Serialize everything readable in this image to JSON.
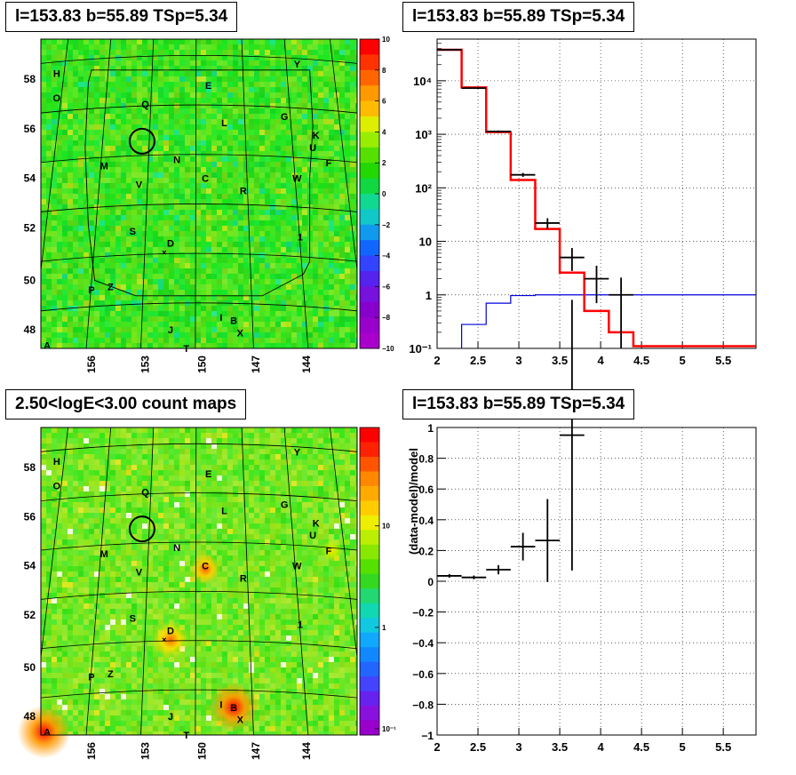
{
  "titles": {
    "top_left": "l=153.83 b=55.89 TSp=5.34",
    "top_right": "l=153.83 b=55.89 TSp=5.34",
    "bottom_left": "2.50<logE<3.00 count maps",
    "bottom_right": "l=153.83 b=55.89 TSp=5.34"
  },
  "chart_data": [
    {
      "type": "heatmap",
      "name_hint": "TS map",
      "xticks": [
        "156",
        "153",
        "150",
        "147",
        "144"
      ],
      "yticks": [
        "58",
        "56",
        "54",
        "52",
        "50",
        "48"
      ],
      "colorbar": {
        "min": -10,
        "max": 10,
        "ticks": [
          "10",
          "8",
          "6",
          "4",
          "2",
          "0",
          "−2",
          "−4",
          "−6",
          "−8",
          "−10"
        ]
      },
      "colors": {
        "background": "#33e033",
        "high": "#ff0000",
        "low": "#7700cc"
      },
      "grid": true
    },
    {
      "type": "line",
      "name_hint": "spectrum",
      "log_y": true,
      "xlim": [
        2,
        5.9
      ],
      "ylim": [
        0.1,
        60000
      ],
      "xticks": [
        "2",
        "2.5",
        "3",
        "3.5",
        "4",
        "4.5",
        "5",
        "5.5"
      ],
      "yticks": [
        "10⁻¹",
        "1",
        "10",
        "10²",
        "10³",
        "10⁴"
      ],
      "grid": true,
      "model_steps": {
        "edges": [
          2.0,
          2.3,
          2.6,
          2.9,
          3.2,
          3.5,
          3.8,
          4.1,
          4.4,
          5.9
        ],
        "values": [
          38000,
          7500,
          1100,
          140,
          17,
          2.6,
          0.5,
          0.2,
          0.11
        ]
      },
      "source_steps": {
        "edges": [
          2.3,
          2.6,
          2.9,
          3.2,
          5.9
        ],
        "values": [
          0.28,
          0.7,
          0.97,
          1.0
        ]
      },
      "data_points": [
        {
          "x": 2.15,
          "xerr": 0.15,
          "y": 38000,
          "ylo": 37500,
          "yhi": 38500
        },
        {
          "x": 2.45,
          "xerr": 0.15,
          "y": 7300,
          "ylo": 7150,
          "yhi": 7450
        },
        {
          "x": 2.75,
          "xerr": 0.15,
          "y": 1130,
          "ylo": 1080,
          "yhi": 1180
        },
        {
          "x": 3.05,
          "xerr": 0.15,
          "y": 175,
          "ylo": 160,
          "yhi": 190
        },
        {
          "x": 3.35,
          "xerr": 0.15,
          "y": 22,
          "ylo": 17,
          "yhi": 27
        },
        {
          "x": 3.65,
          "xerr": 0.15,
          "y": 5,
          "ylo": 2.8,
          "yhi": 7.5
        },
        {
          "x": 3.95,
          "xerr": 0.15,
          "y": 2,
          "ylo": 0.7,
          "yhi": 3.5
        },
        {
          "x": 4.25,
          "xerr": 0.15,
          "y": 1,
          "ylo": 0.1,
          "yhi": 2.1
        }
      ],
      "colors": {
        "model": "#ff0000",
        "source": "#0000dd",
        "data": "#000000"
      }
    },
    {
      "type": "heatmap",
      "name_hint": "count map",
      "xticks": [
        "156",
        "153",
        "150",
        "147",
        "144"
      ],
      "yticks": [
        "58",
        "56",
        "54",
        "52",
        "50",
        "48"
      ],
      "colorbar": {
        "ticks": [
          "10",
          "1",
          "10⁻¹"
        ]
      },
      "colors": {
        "background": "#5fe83a",
        "high": "#ff0000",
        "low": "#7700cc"
      },
      "grid": true
    },
    {
      "type": "scatter",
      "name_hint": "residuals",
      "xlim": [
        2,
        5.9
      ],
      "ylim": [
        -1,
        1
      ],
      "ylabel": "(data-model)/model",
      "xticks": [
        "2",
        "2.5",
        "3",
        "3.5",
        "4",
        "4.5",
        "5",
        "5.5"
      ],
      "yticks": [
        "1",
        "0.8",
        "0.6",
        "0.4",
        "0.2",
        "0",
        "−0.2",
        "−0.4",
        "−0.6",
        "−0.8",
        "−1"
      ],
      "grid": true,
      "points": [
        {
          "x": 2.15,
          "xerr": 0.15,
          "y": 0.035,
          "yerr": 0.012
        },
        {
          "x": 2.45,
          "xerr": 0.15,
          "y": 0.025,
          "yerr": 0.012
        },
        {
          "x": 2.75,
          "xerr": 0.15,
          "y": 0.075,
          "yerr": 0.03
        },
        {
          "x": 3.05,
          "xerr": 0.15,
          "y": 0.225,
          "yerr": 0.09
        },
        {
          "x": 3.35,
          "xerr": 0.15,
          "y": 0.265,
          "yerr": 0.27
        },
        {
          "x": 3.65,
          "xerr": 0.15,
          "y": 0.95,
          "yerr": 0.88
        }
      ]
    }
  ],
  "sources": [
    {
      "label": "H",
      "fx": 0.05,
      "fy": 0.11
    },
    {
      "label": "Y",
      "fx": 0.81,
      "fy": 0.08
    },
    {
      "label": "O",
      "fx": 0.05,
      "fy": 0.19
    },
    {
      "label": "E",
      "fx": 0.53,
      "fy": 0.15
    },
    {
      "label": "Q",
      "fx": 0.33,
      "fy": 0.21
    },
    {
      "label": "L",
      "fx": 0.58,
      "fy": 0.27
    },
    {
      "label": "G",
      "fx": 0.77,
      "fy": 0.25
    },
    {
      "label": "K",
      "fx": 0.87,
      "fy": 0.31
    },
    {
      "label": "U",
      "fx": 0.86,
      "fy": 0.35
    },
    {
      "label": "N",
      "fx": 0.43,
      "fy": 0.39
    },
    {
      "label": "F",
      "fx": 0.91,
      "fy": 0.4
    },
    {
      "label": "M",
      "fx": 0.2,
      "fy": 0.41
    },
    {
      "label": "C",
      "fx": 0.52,
      "fy": 0.45
    },
    {
      "label": "W",
      "fx": 0.81,
      "fy": 0.45
    },
    {
      "label": "V",
      "fx": 0.31,
      "fy": 0.47
    },
    {
      "label": "R",
      "fx": 0.64,
      "fy": 0.49
    },
    {
      "label": "S",
      "fx": 0.29,
      "fy": 0.62
    },
    {
      "label": "1",
      "fx": 0.82,
      "fy": 0.64
    },
    {
      "label": "D",
      "fx": 0.41,
      "fy": 0.66
    },
    {
      "label": "P",
      "fx": 0.16,
      "fy": 0.81
    },
    {
      "label": "Z",
      "fx": 0.22,
      "fy": 0.8
    },
    {
      "label": "I",
      "fx": 0.57,
      "fy": 0.9
    },
    {
      "label": "B",
      "fx": 0.61,
      "fy": 0.91
    },
    {
      "label": "J",
      "fx": 0.41,
      "fy": 0.94
    },
    {
      "label": "X",
      "fx": 0.63,
      "fy": 0.95
    },
    {
      "label": "A",
      "fx": 0.02,
      "fy": 0.99
    },
    {
      "label": "T",
      "fx": 0.46,
      "fy": 1.0
    }
  ]
}
